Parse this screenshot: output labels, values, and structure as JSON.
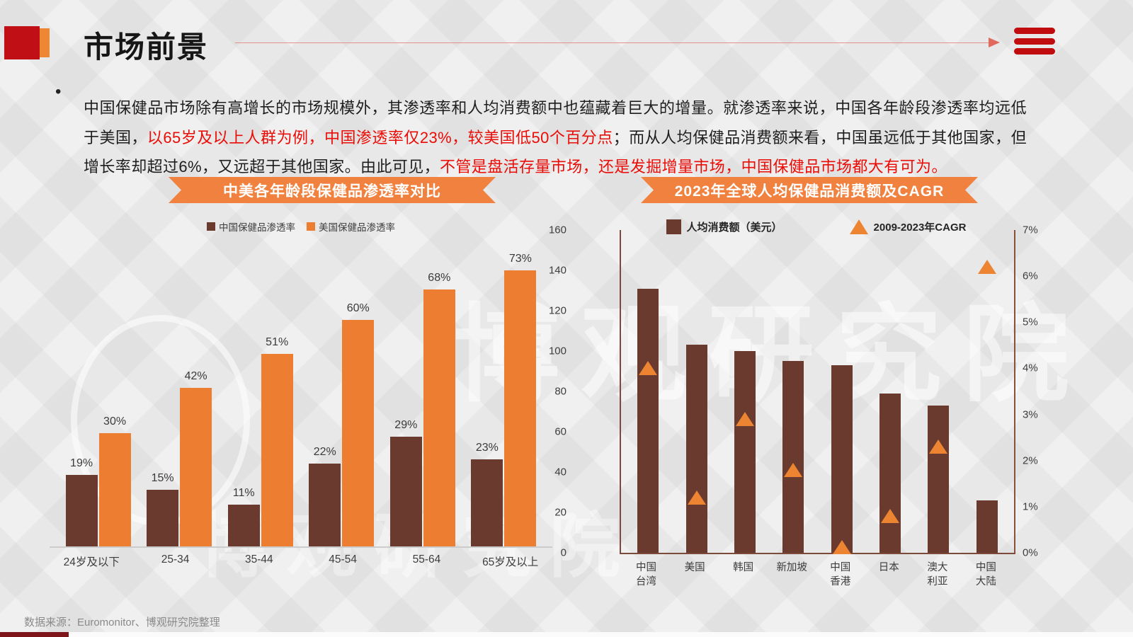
{
  "header": {
    "title": "市场前景"
  },
  "paragraph": {
    "bullet": "•",
    "segments": [
      {
        "text": "中国保健品市场除有高增长的市场规模外，其渗透率和人均消费额中也蕴藏着巨大的增量。就渗透率来说，中国各年龄段渗透率均远低于美国，",
        "red": false
      },
      {
        "text": "以65岁及以上人群为例，中国渗透率仅23%，较美国低50个百分点",
        "red": true
      },
      {
        "text": "；而从人均保健品消费额来看，中国虽远低于其他国家，但增长率却超过6%，又远超于其他国家。由此可见，",
        "red": false
      },
      {
        "text": "不管是盘活存量市场，还是发掘增量市场，中国保健品市场都大有可为。",
        "red": true
      }
    ]
  },
  "colors": {
    "china_bar": "#6b3a2e",
    "us_bar": "#ed7d31",
    "consumption_bar": "#6b3a2e",
    "cagr_triangle": "#ed8432",
    "banner": "#f0813f",
    "accent_red": "#c01015",
    "accent_orange": "#ed8733",
    "red_text": "#ea0c06"
  },
  "chart_data": [
    {
      "type": "bar",
      "title": "中美各年龄段保健品渗透率对比",
      "categories": [
        "24岁及以下",
        "25-34",
        "35-44",
        "45-54",
        "55-64",
        "65岁及以上"
      ],
      "series": [
        {
          "name": "中国保健品渗透率",
          "color_key": "china_bar",
          "values": [
            19,
            15,
            11,
            22,
            29,
            23
          ]
        },
        {
          "name": "美国保健品渗透率",
          "color_key": "us_bar",
          "values": [
            30,
            42,
            51,
            60,
            68,
            73
          ]
        }
      ],
      "unit": "%",
      "ylim": [
        0,
        80
      ],
      "grid": false,
      "legend_position": "top",
      "value_labels": true
    },
    {
      "type": "bar+scatter",
      "title": "2023年全球人均保健品消费额及CAGR",
      "categories": [
        "中国\n台湾",
        "美国",
        "韩国",
        "新加坡",
        "中国\n香港",
        "日本",
        "澳大\n利亚",
        "中国\n大陆"
      ],
      "series": [
        {
          "name": "人均消费额（美元）",
          "type": "bar",
          "axis": "left",
          "color_key": "consumption_bar",
          "values": [
            131,
            103,
            100,
            95,
            93,
            79,
            73,
            26
          ]
        },
        {
          "name": "2009-2023年CAGR",
          "type": "triangle",
          "axis": "right",
          "color_key": "cagr_triangle",
          "values": [
            4.0,
            1.2,
            2.9,
            1.8,
            0.1,
            0.8,
            2.3,
            6.2
          ],
          "unit": "%"
        }
      ],
      "left_axis": {
        "min": 0,
        "max": 160,
        "ticks": [
          0,
          20,
          40,
          60,
          80,
          100,
          120,
          140,
          160
        ]
      },
      "right_axis": {
        "min": 0,
        "max": 7,
        "ticks": [
          "0%",
          "1%",
          "2%",
          "3%",
          "4%",
          "5%",
          "6%",
          "7%"
        ]
      },
      "grid": false,
      "legend_position": "top"
    }
  ],
  "watermark": {
    "text": "博观研究院"
  },
  "footer": {
    "source": "数据来源：Euromonitor、博观研究院整理"
  }
}
